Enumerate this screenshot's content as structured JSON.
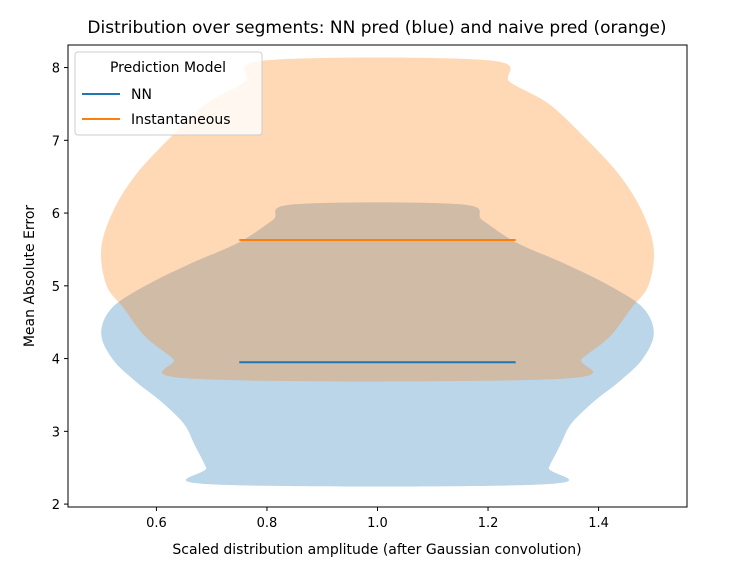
{
  "chart_data": {
    "type": "violin",
    "title": "Distribution over segments: NN pred (blue) and naive pred (orange)",
    "xlabel": "Scaled distribution amplitude (after Gaussian convolution)",
    "ylabel": "Mean Absolute Error",
    "xlim": [
      0.44,
      1.56
    ],
    "ylim": [
      1.96,
      8.31
    ],
    "x_ticks": [
      0.6,
      0.8,
      1.0,
      1.2,
      1.4
    ],
    "x_tick_labels": [
      "0.6",
      "0.8",
      "1.0",
      "1.2",
      "1.4"
    ],
    "y_ticks": [
      2,
      3,
      4,
      5,
      6,
      7,
      8
    ],
    "y_tick_labels": [
      "2",
      "3",
      "4",
      "5",
      "6",
      "7",
      "8"
    ],
    "legend": {
      "title": "Prediction Model",
      "position": "top-left",
      "entries": [
        {
          "label": "NN",
          "color": "#1f77b4"
        },
        {
          "label": "Instantaneous",
          "color": "#ff7f0e"
        }
      ]
    },
    "series": [
      {
        "name": "NN",
        "color": "#1f77b4",
        "fill_alpha": 0.3,
        "center": 1.0,
        "median": 3.95,
        "median_halfwidth": 0.25,
        "profile": [
          {
            "y": 2.27,
            "hw": 0.3
          },
          {
            "y": 2.5,
            "hw": 0.31
          },
          {
            "y": 2.8,
            "hw": 0.33
          },
          {
            "y": 3.1,
            "hw": 0.35
          },
          {
            "y": 3.4,
            "hw": 0.39
          },
          {
            "y": 3.7,
            "hw": 0.44
          },
          {
            "y": 4.0,
            "hw": 0.48
          },
          {
            "y": 4.35,
            "hw": 0.5
          },
          {
            "y": 4.7,
            "hw": 0.48
          },
          {
            "y": 5.0,
            "hw": 0.42
          },
          {
            "y": 5.3,
            "hw": 0.34
          },
          {
            "y": 5.6,
            "hw": 0.25
          },
          {
            "y": 5.9,
            "hw": 0.19
          },
          {
            "y": 6.12,
            "hw": 0.15
          }
        ]
      },
      {
        "name": "Instantaneous",
        "color": "#ff7f0e",
        "fill_alpha": 0.3,
        "center": 1.0,
        "median": 5.63,
        "median_halfwidth": 0.25,
        "profile": [
          {
            "y": 3.72,
            "hw": 0.33
          },
          {
            "y": 4.0,
            "hw": 0.37
          },
          {
            "y": 4.3,
            "hw": 0.42
          },
          {
            "y": 4.7,
            "hw": 0.46
          },
          {
            "y": 5.0,
            "hw": 0.49
          },
          {
            "y": 5.5,
            "hw": 0.5
          },
          {
            "y": 6.0,
            "hw": 0.48
          },
          {
            "y": 6.5,
            "hw": 0.44
          },
          {
            "y": 7.0,
            "hw": 0.38
          },
          {
            "y": 7.5,
            "hw": 0.31
          },
          {
            "y": 7.8,
            "hw": 0.24
          },
          {
            "y": 8.1,
            "hw": 0.2
          }
        ]
      }
    ]
  }
}
